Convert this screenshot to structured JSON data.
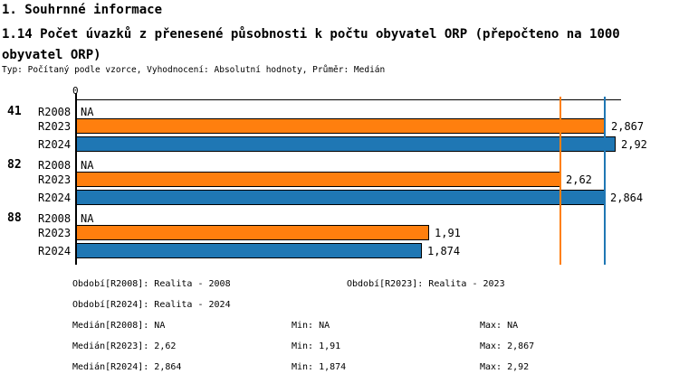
{
  "header": {
    "section": "1. Souhrnné informace",
    "title": "1.14 Počet úvazků z přenesené působnosti k počtu obyvatel ORP (přepočteno na 1000 obyvatel ORP)",
    "meta": "Typ: Počítaný podle vzorce, Vyhodnocení: Absolutní hodnoty, Průměr: Medián"
  },
  "chart_data": {
    "type": "bar",
    "orientation": "horizontal",
    "title": "1.14 Počet úvazků z přenesené působnosti k počtu obyvatel ORP (přepočteno na 1000 obyvatel ORP)",
    "categories": [
      "41",
      "82",
      "88"
    ],
    "series": [
      {
        "name": "R2008",
        "color": "#ffffff",
        "values": [
          null,
          null,
          null
        ],
        "labels": [
          "NA",
          "NA",
          "NA"
        ]
      },
      {
        "name": "R2023",
        "color": "#ff7f0e",
        "values": [
          2.867,
          2.62,
          1.91
        ],
        "labels": [
          "2,867",
          "2,62",
          "1,91"
        ]
      },
      {
        "name": "R2024",
        "color": "#1f77b4",
        "values": [
          2.92,
          2.864,
          1.874
        ],
        "labels": [
          "2,92",
          "2,864",
          "1,874"
        ]
      }
    ],
    "xlim": [
      0,
      2.95
    ],
    "x_tick_labels": [
      "0"
    ],
    "grid": false,
    "legend_position": "none",
    "median_lines": [
      {
        "series": "R2023",
        "value": 2.62,
        "color": "#ff7f0e"
      },
      {
        "series": "R2024",
        "value": 2.864,
        "color": "#1f77b4"
      }
    ]
  },
  "legend": {
    "obdobi_r2008": "Období[R2008]: Realita - 2008",
    "obdobi_r2023": "Období[R2023]: Realita - 2023",
    "obdobi_r2024": "Období[R2024]: Realita - 2024",
    "median_r2008": "Medián[R2008]: NA",
    "min_r2008": "Min: NA",
    "max_r2008": "Max: NA",
    "median_r2023": "Medián[R2023]: 2,62",
    "min_r2023": "Min: 1,91",
    "max_r2023": "Max: 2,867",
    "median_r2024": "Medián[R2024]: 2,864",
    "min_r2024": "Min: 1,874",
    "max_r2024": "Max: 2,92"
  }
}
